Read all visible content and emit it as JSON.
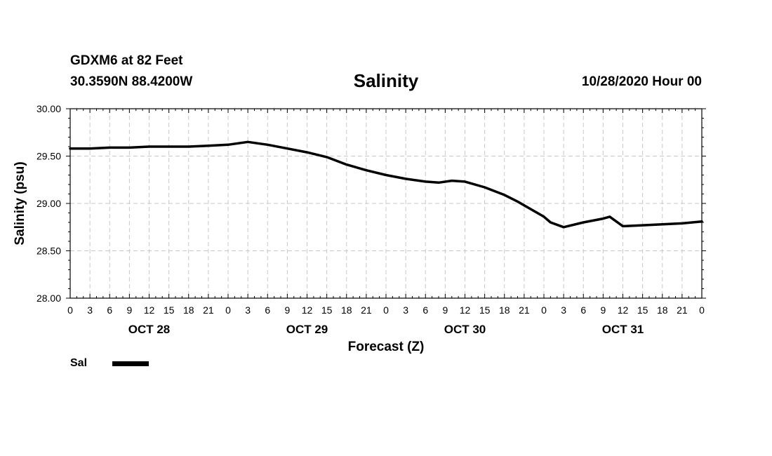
{
  "header": {
    "station": "GDXM6 at 82 Feet",
    "coords": "30.3590N 88.4200W",
    "title": "Salinity",
    "issued": "10/28/2020 Hour 00"
  },
  "legend": {
    "label": "Sal",
    "color": "#000000"
  },
  "chart_data": {
    "type": "line",
    "title": "Salinity",
    "xlabel": "Forecast (Z)",
    "ylabel": "Salinity (psu)",
    "ylim": [
      28.0,
      30.0
    ],
    "xlim": [
      0,
      96
    ],
    "y_ticks": [
      "28.00",
      "28.50",
      "29.00",
      "29.50",
      "30.00"
    ],
    "y_tick_values": [
      28.0,
      28.5,
      29.0,
      29.5,
      30.0
    ],
    "x_tick_labels": [
      "0",
      "3",
      "6",
      "9",
      "12",
      "15",
      "18",
      "21",
      "0",
      "3",
      "6",
      "9",
      "12",
      "15",
      "18",
      "21",
      "0",
      "3",
      "6",
      "9",
      "12",
      "15",
      "18",
      "21",
      "0",
      "3",
      "6",
      "9",
      "12",
      "15",
      "18",
      "21",
      "0"
    ],
    "day_labels": [
      {
        "label": "OCT 28",
        "hour": 12
      },
      {
        "label": "OCT 29",
        "hour": 36
      },
      {
        "label": "OCT 30",
        "hour": 60
      },
      {
        "label": "OCT 31",
        "hour": 84
      }
    ],
    "grid": true,
    "series": [
      {
        "name": "Sal",
        "x": [
          0,
          3,
          6,
          9,
          12,
          15,
          18,
          21,
          24,
          27,
          30,
          33,
          36,
          39,
          42,
          45,
          48,
          51,
          54,
          56,
          58,
          60,
          63,
          66,
          68,
          70,
          72,
          73,
          75,
          78,
          81,
          82,
          84,
          87,
          90,
          93,
          96
        ],
        "values": [
          29.58,
          29.58,
          29.59,
          29.59,
          29.6,
          29.6,
          29.6,
          29.61,
          29.62,
          29.65,
          29.62,
          29.58,
          29.54,
          29.49,
          29.41,
          29.35,
          29.3,
          29.26,
          29.23,
          29.22,
          29.24,
          29.23,
          29.17,
          29.09,
          29.02,
          28.94,
          28.86,
          28.8,
          28.75,
          28.8,
          28.84,
          28.86,
          28.76,
          28.77,
          28.78,
          28.79,
          28.81
        ]
      }
    ]
  }
}
